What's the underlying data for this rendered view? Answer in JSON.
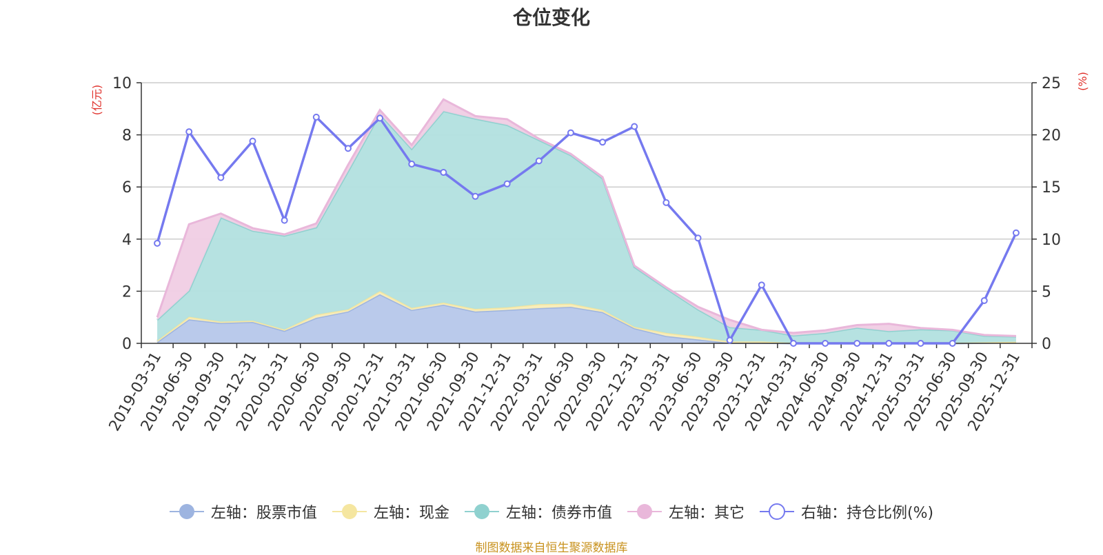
{
  "chart_data": {
    "type": "area",
    "title": "仓位变化",
    "left_axis_label": "(亿元)",
    "right_axis_label": "(%)",
    "left_ylim": [
      0,
      10
    ],
    "left_yticks": [
      0,
      2,
      4,
      6,
      8,
      10
    ],
    "right_ylim": [
      0,
      25
    ],
    "right_yticks": [
      0,
      5,
      10,
      15,
      20,
      25
    ],
    "categories": [
      "2019-03-31",
      "2019-06-30",
      "2019-09-30",
      "2019-12-31",
      "2020-03-31",
      "2020-06-30",
      "2020-09-30",
      "2020-12-31",
      "2021-03-31",
      "2021-06-30",
      "2021-09-30",
      "2021-12-31",
      "2022-03-31",
      "2022-06-30",
      "2022-09-30",
      "2022-12-31",
      "2023-03-31",
      "2023-06-30",
      "2023-09-30",
      "2023-12-31",
      "2024-03-31",
      "2024-06-30",
      "2024-09-30",
      "2024-12-31",
      "2025-03-31",
      "2025-06-30",
      "2025-09-30",
      "2025-12-31"
    ],
    "stacked_series": [
      {
        "name": "左轴：股票市值",
        "axis": "left",
        "color": "#9db4e0",
        "fill": "#b6c7ea",
        "values": [
          0.05,
          0.92,
          0.78,
          0.82,
          0.48,
          0.98,
          1.22,
          1.88,
          1.28,
          1.48,
          1.22,
          1.28,
          1.35,
          1.4,
          1.2,
          0.58,
          0.28,
          0.15,
          0.02,
          0.02,
          0.0,
          0.0,
          0.0,
          0.0,
          0.0,
          0.0,
          0.02,
          0.04
        ]
      },
      {
        "name": "左轴：现金",
        "axis": "left",
        "color": "#f5e6a0",
        "fill": "#f9edb8",
        "values": [
          0.05,
          0.1,
          0.05,
          0.05,
          0.05,
          0.12,
          0.08,
          0.12,
          0.08,
          0.08,
          0.1,
          0.1,
          0.15,
          0.12,
          0.08,
          0.05,
          0.12,
          0.1,
          0.05,
          0.05,
          0.02,
          0.02,
          0.02,
          0.02,
          0.02,
          0.02,
          0.02,
          0.02
        ]
      },
      {
        "name": "左轴：债券市值",
        "axis": "left",
        "color": "#8fd1cf",
        "fill": "#b2e0df",
        "values": [
          0.8,
          1.0,
          4.0,
          3.45,
          3.6,
          3.35,
          5.3,
          6.8,
          6.1,
          7.35,
          7.3,
          7.0,
          6.3,
          5.7,
          5.05,
          2.3,
          1.7,
          1.05,
          0.55,
          0.45,
          0.28,
          0.38,
          0.58,
          0.45,
          0.52,
          0.48,
          0.25,
          0.2
        ]
      },
      {
        "name": "左轴：其它",
        "axis": "left",
        "color": "#e9b7da",
        "fill": "#f0cde4",
        "values": [
          0.1,
          2.55,
          0.15,
          0.1,
          0.05,
          0.15,
          0.25,
          0.15,
          0.15,
          0.45,
          0.1,
          0.22,
          0.05,
          0.05,
          0.05,
          0.05,
          0.05,
          0.1,
          0.28,
          0.0,
          0.1,
          0.1,
          0.1,
          0.28,
          0.05,
          0.02,
          0.03,
          0.02
        ]
      }
    ],
    "line_series": {
      "name": "右轴：持仓比例(%)",
      "axis": "right",
      "color": "#7579ef",
      "values": [
        9.6,
        20.3,
        15.9,
        19.4,
        11.8,
        21.7,
        18.7,
        21.6,
        17.2,
        16.4,
        14.1,
        15.3,
        17.5,
        20.2,
        19.3,
        20.8,
        13.5,
        10.1,
        0.3,
        5.6,
        0.0,
        0.0,
        0.0,
        0.0,
        0.0,
        0.0,
        4.1,
        10.6
      ]
    },
    "legend_position": "bottom",
    "grid": true
  },
  "footer": "制图数据来自恒生聚源数据库"
}
